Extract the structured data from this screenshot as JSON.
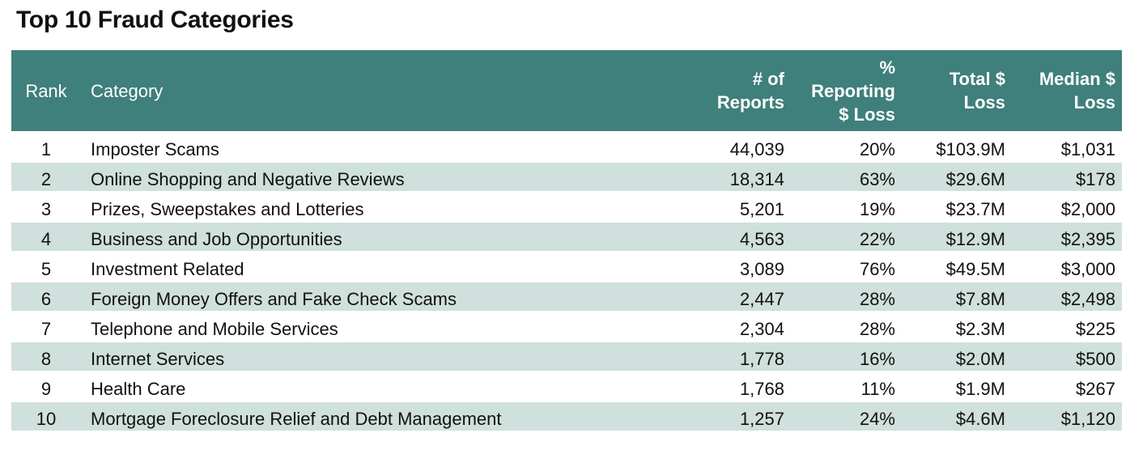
{
  "header": {
    "title": "Top 10 Fraud Categories"
  },
  "table": {
    "columns": [
      "Rank",
      "Category",
      "# of\nReports",
      "%\nReporting\n$ Loss",
      "Total $\nLoss",
      "Median $\nLoss"
    ],
    "rows": [
      [
        "1",
        "Imposter Scams",
        "44,039",
        "20%",
        "$103.9M",
        "$1,031"
      ],
      [
        "2",
        "Online Shopping and Negative Reviews",
        "18,314",
        "63%",
        "$29.6M",
        "$178"
      ],
      [
        "3",
        "Prizes, Sweepstakes and Lotteries",
        "5,201",
        "19%",
        "$23.7M",
        "$2,000"
      ],
      [
        "4",
        "Business and Job Opportunities",
        "4,563",
        "22%",
        "$12.9M",
        "$2,395"
      ],
      [
        "5",
        "Investment Related",
        "3,089",
        "76%",
        "$49.5M",
        "$3,000"
      ],
      [
        "6",
        "Foreign Money Offers and Fake Check Scams",
        "2,447",
        "28%",
        "$7.8M",
        "$2,498"
      ],
      [
        "7",
        "Telephone and Mobile Services",
        "2,304",
        "28%",
        "$2.3M",
        "$225"
      ],
      [
        "8",
        "Internet Services",
        "1,778",
        "16%",
        "$2.0M",
        "$500"
      ],
      [
        "9",
        "Health Care",
        "1,768",
        "11%",
        "$1.9M",
        "$267"
      ],
      [
        "10",
        "Mortgage Foreclosure Relief and Debt Management",
        "1,257",
        "24%",
        "$4.6M",
        "$1,120"
      ]
    ]
  }
}
